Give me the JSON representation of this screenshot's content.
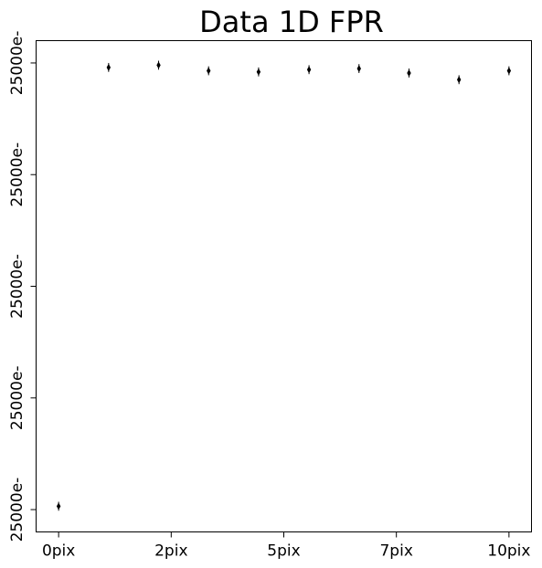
{
  "chart_data": {
    "type": "scatter",
    "title": "Data 1D FPR",
    "xlabel": "",
    "ylabel": "",
    "x_tick_labels": [
      "0pix",
      "2pix",
      "5pix",
      "7pix",
      "10pix"
    ],
    "y_tick_labels": [
      "25000e-",
      "25000e-",
      "25000e-",
      "25000e-",
      "25000e-"
    ],
    "xlim": [
      -0.5,
      10.5
    ],
    "ylim": [
      -0.2,
      4.2
    ],
    "x_tick_values": [
      0,
      2.5,
      5,
      7.5,
      10
    ],
    "y_tick_values": [
      0,
      1,
      2,
      3,
      4
    ],
    "series": [
      {
        "x": [
          0,
          1.11,
          2.22,
          3.33,
          4.44,
          5.56,
          6.67,
          7.78,
          8.89,
          10
        ],
        "y": [
          0.03,
          3.96,
          3.98,
          3.93,
          3.92,
          3.94,
          3.95,
          3.91,
          3.85,
          3.93
        ],
        "yerr": [
          0.04,
          0.04,
          0.04,
          0.04,
          0.04,
          0.04,
          0.04,
          0.04,
          0.04,
          0.04
        ]
      }
    ],
    "grid": false,
    "marker": "diamond",
    "color": "#000000"
  }
}
